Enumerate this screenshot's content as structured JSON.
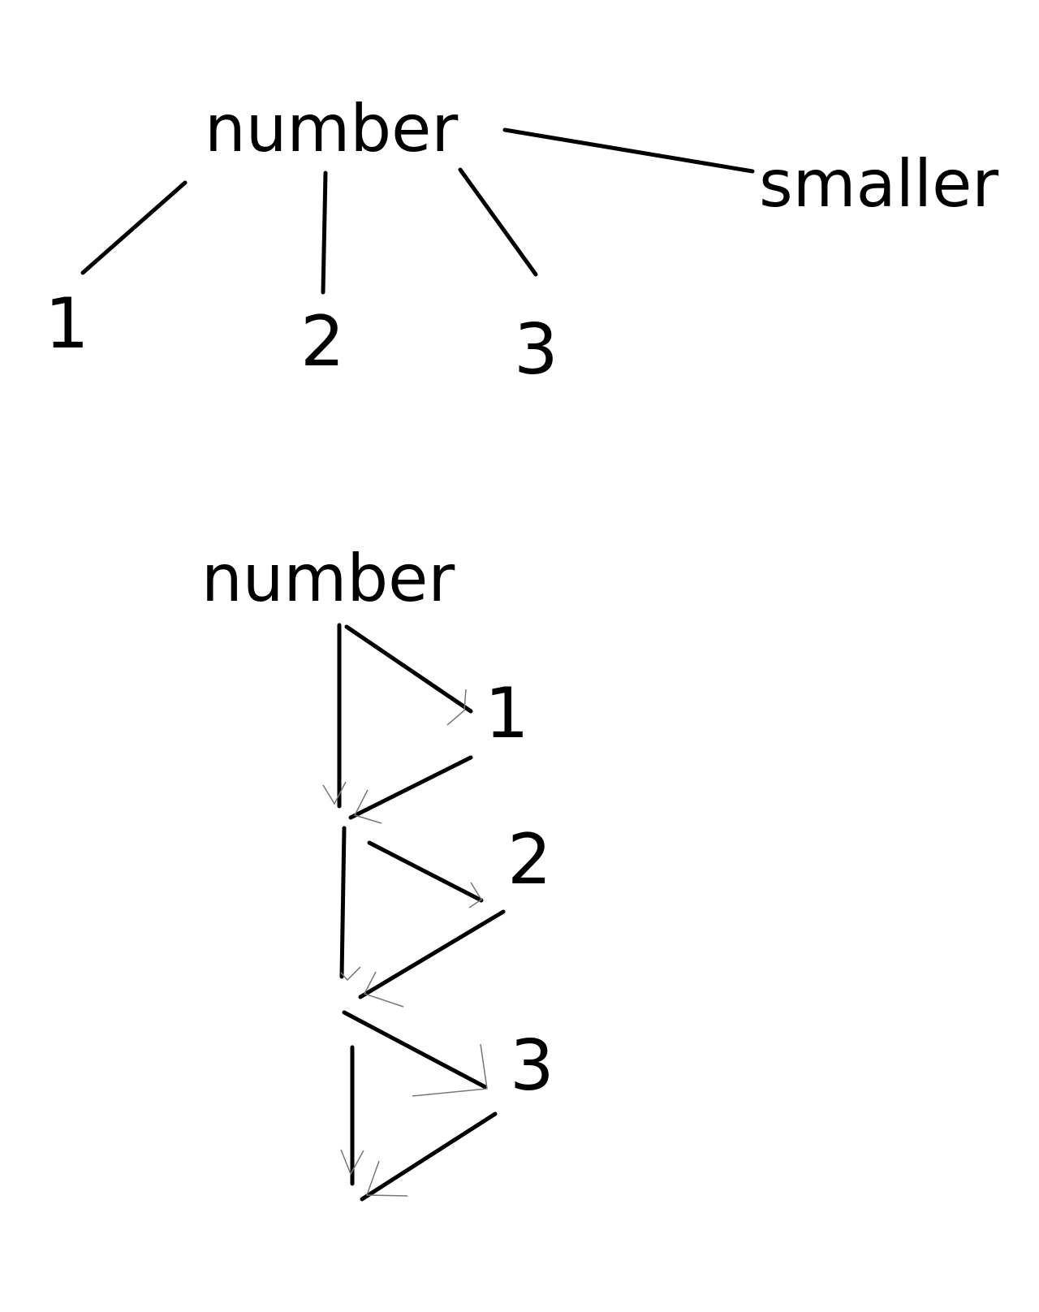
{
  "diagram_1": {
    "root": "number",
    "branch": "smaller",
    "children": [
      "1",
      "2",
      "3"
    ]
  },
  "diagram_2": {
    "root": "number",
    "steps": [
      "1",
      "2",
      "3"
    ]
  },
  "colors": {
    "ink": "#000000",
    "arrow_sketch": "#777777",
    "background": "#ffffff"
  }
}
